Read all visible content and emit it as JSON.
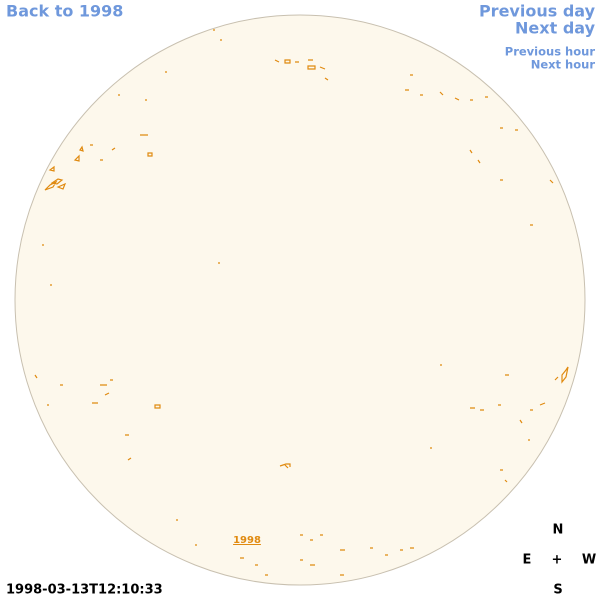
{
  "header": {
    "back_link": "Back to 1998",
    "previous_day": "Previous day",
    "next_day": "Next day",
    "previous_hour": "Previous hour",
    "next_hour": "Next hour"
  },
  "image": {
    "year_label": "1998",
    "timestamp": "1998-03-13T12:10:33"
  },
  "compass": {
    "north": "N",
    "east": "E",
    "center": "+",
    "west": "W",
    "south": "S"
  }
}
